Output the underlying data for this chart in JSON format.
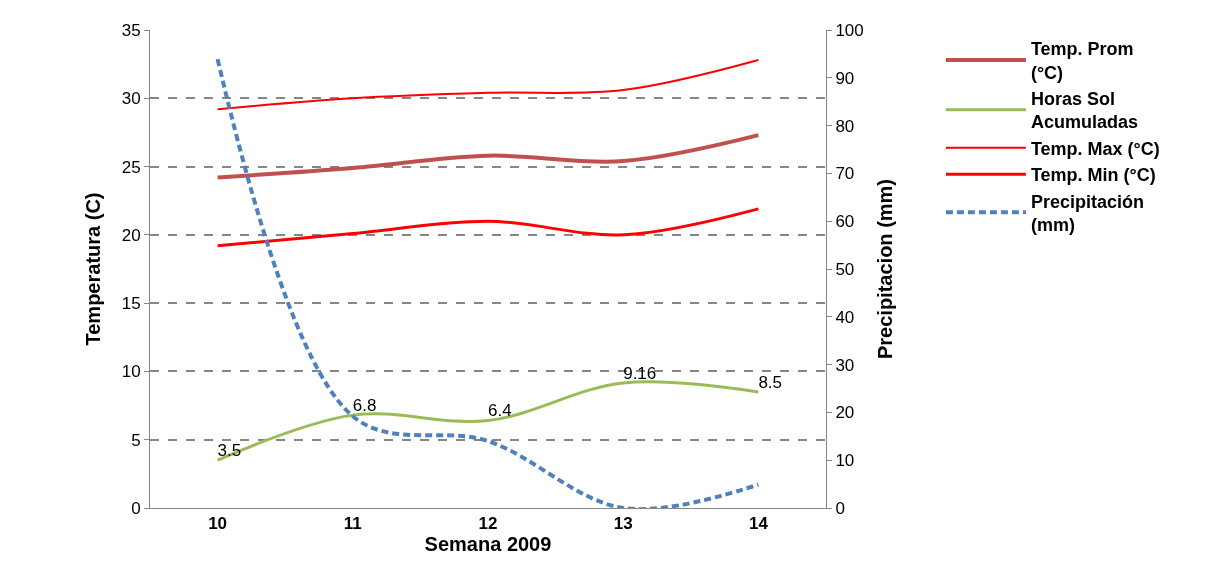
{
  "chart_data": {
    "type": "line",
    "xlabel": "Semana 2009",
    "ylabel": "Temperatura (C)",
    "y2label": "Precipitacion (mm)",
    "categories": [
      "10",
      "11",
      "12",
      "13",
      "14"
    ],
    "ylim": [
      0,
      35
    ],
    "yticks": [
      0,
      5,
      10,
      15,
      20,
      25,
      30,
      35
    ],
    "y2lim": [
      0,
      100
    ],
    "y2ticks": [
      0,
      10,
      20,
      30,
      40,
      50,
      60,
      70,
      80,
      90,
      100
    ],
    "grid": "y",
    "legend": "right",
    "marker": "none",
    "series": [
      {
        "name": "Temp. Prom (°C)",
        "color": "#c0504d",
        "values": [
          24.2,
          24.9,
          25.8,
          25.4,
          27.3
        ]
      },
      {
        "name": "Horas Sol Acumuladas",
        "color": "#9bbb59",
        "values": [
          3.5,
          6.8,
          6.4,
          9.16,
          8.5
        ],
        "value_labels": [
          "3.5",
          "6.8",
          "6.4",
          "9.16",
          "8.5"
        ]
      },
      {
        "name": "Temp. Max (°C)",
        "color": "#ff0000",
        "values": [
          29.2,
          30.0,
          30.4,
          30.6,
          32.8
        ]
      },
      {
        "name": "Temp. Min (°C)",
        "color": "#ff0000",
        "values": [
          19.2,
          20.1,
          21.0,
          20.0,
          21.9
        ]
      },
      {
        "name": "Precipitación (mm)",
        "color": "#4f81bd",
        "values": [
          93.9,
          19.2,
          14.0,
          0.0,
          4.9
        ],
        "axis": "y2",
        "line_style": "dashed"
      }
    ]
  }
}
